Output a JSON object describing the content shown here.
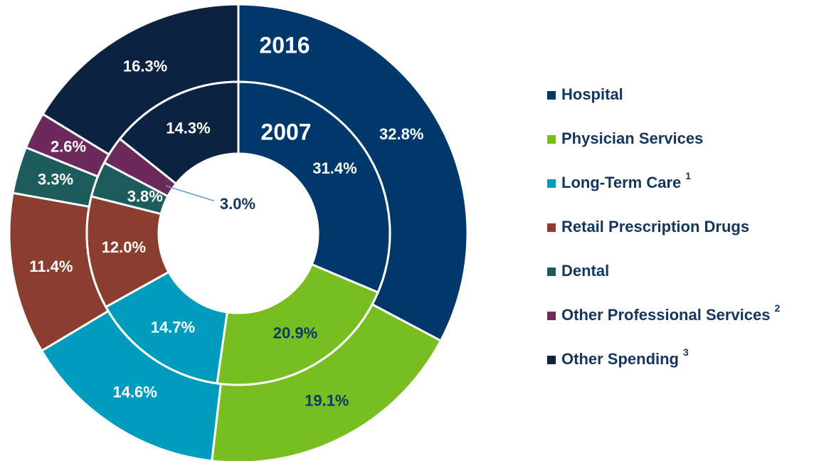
{
  "chart_data": {
    "type": "donut",
    "categories": [
      "Hospital",
      "Physician Services",
      "Long-Term Care",
      "Retail Prescription Drugs",
      "Dental",
      "Other Professional Services",
      "Other Spending"
    ],
    "footnotes": [
      null,
      null,
      "1",
      null,
      null,
      "2",
      "3"
    ],
    "colors": [
      "#00386b",
      "#78be20",
      "#009cbd",
      "#8b3e2f",
      "#1d5c5c",
      "#6b2a5b",
      "#0b2240"
    ],
    "series": [
      {
        "name": "2016",
        "values": [
          32.8,
          19.1,
          14.6,
          11.4,
          3.3,
          2.6,
          16.3
        ],
        "value_labels": [
          "32.8%",
          "19.1%",
          "14.6%",
          "11.4%",
          "3.3%",
          "2.6%",
          "16.3%"
        ]
      },
      {
        "name": "2007",
        "values": [
          31.4,
          20.9,
          14.7,
          12.0,
          3.8,
          3.0,
          14.3
        ],
        "value_labels": [
          "31.4%",
          "20.9%",
          "14.7%",
          "12.0%",
          "3.8%",
          "3.0%",
          "14.3%"
        ]
      }
    ]
  }
}
